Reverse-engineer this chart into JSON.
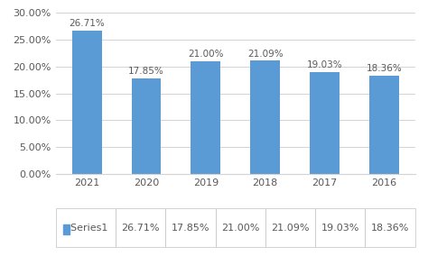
{
  "categories": [
    "2021",
    "2020",
    "2019",
    "2018",
    "2017",
    "2016"
  ],
  "values": [
    26.71,
    17.85,
    21.0,
    21.09,
    19.03,
    18.36
  ],
  "bar_color": "#5B9BD5",
  "label_color": "#595959",
  "ylim": [
    0,
    30
  ],
  "yticks": [
    0,
    5,
    10,
    15,
    20,
    25,
    30
  ],
  "ytick_labels": [
    "0.00%",
    "5.00%",
    "10.00%",
    "15.00%",
    "20.00%",
    "25.00%",
    "30.00%"
  ],
  "legend_label": "Series1",
  "legend_square_color": "#5B9BD5",
  "background_color": "#ffffff",
  "bar_label_fontsize": 7.5,
  "tick_fontsize": 8,
  "legend_fontsize": 8,
  "table_border_color": "#c0c0c0"
}
